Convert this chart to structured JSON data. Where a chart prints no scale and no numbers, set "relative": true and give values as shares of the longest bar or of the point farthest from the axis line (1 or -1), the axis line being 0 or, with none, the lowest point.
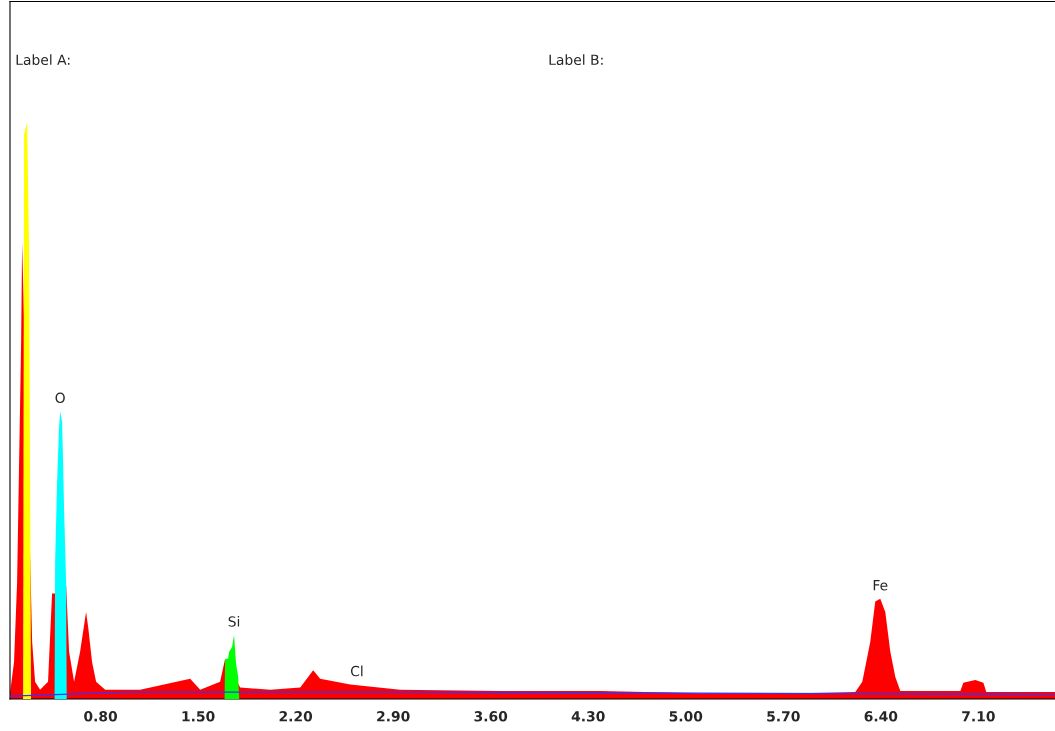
{
  "chart_data": {
    "type": "area",
    "relative": true,
    "xlim": [
      0.15,
      7.65
    ],
    "xticks": [
      {
        "value": 0.8,
        "label": "0.80"
      },
      {
        "value": 1.5,
        "label": "1.50"
      },
      {
        "value": 2.2,
        "label": "2.20"
      },
      {
        "value": 2.9,
        "label": "2.90"
      },
      {
        "value": 3.6,
        "label": "3.60"
      },
      {
        "value": 4.3,
        "label": "4.30"
      },
      {
        "value": 5.0,
        "label": "5.00"
      },
      {
        "value": 5.7,
        "label": "5.70"
      },
      {
        "value": 6.4,
        "label": "6.40"
      },
      {
        "value": 7.1,
        "label": "7.10"
      }
    ],
    "tick_labels": "x",
    "series": [
      {
        "color": "#ff0000",
        "x": [
          0.151,
          0.179,
          0.201,
          0.215,
          0.23,
          0.237,
          0.294,
          0.309,
          0.33,
          0.366,
          0.423,
          0.452,
          0.474,
          0.553,
          0.574,
          0.61,
          0.653,
          0.696,
          0.711,
          0.739,
          0.768,
          0.833,
          1.084,
          1.443,
          1.515,
          1.658,
          1.694,
          1.802,
          2.017,
          2.233,
          2.326,
          2.376,
          2.592,
          2.95,
          3.668,
          4.386,
          5.104,
          5.822,
          6.217,
          6.267,
          6.324,
          6.36,
          6.396,
          6.432,
          6.468,
          6.504,
          6.54,
          6.971,
          6.992,
          7.078,
          7.136,
          7.157,
          7.65
        ],
        "values": [
          0.012,
          0.064,
          0.203,
          0.405,
          0.621,
          0.791,
          0.252,
          0.099,
          0.03,
          0.016,
          0.03,
          0.183,
          0.183,
          0.197,
          0.082,
          0.03,
          0.082,
          0.151,
          0.125,
          0.064,
          0.03,
          0.016,
          0.016,
          0.035,
          0.016,
          0.03,
          0.07,
          0.02,
          0.016,
          0.02,
          0.05,
          0.035,
          0.025,
          0.016,
          0.014,
          0.014,
          0.01,
          0.01,
          0.012,
          0.03,
          0.099,
          0.169,
          0.174,
          0.151,
          0.082,
          0.038,
          0.014,
          0.014,
          0.028,
          0.033,
          0.028,
          0.012,
          0.012
        ]
      },
      {
        "color": "#ffff00",
        "x": [
          0.244,
          0.251,
          0.273,
          0.287,
          0.294,
          0.301
        ],
        "values": [
          0.0,
          0.98,
          1.0,
          0.777,
          0.395,
          0.0
        ]
      },
      {
        "color": "#00ffff",
        "x": [
          0.47,
          0.474,
          0.488,
          0.502,
          0.51,
          0.524,
          0.531,
          0.538,
          0.553,
          0.557
        ],
        "values": [
          0.0,
          0.238,
          0.377,
          0.47,
          0.499,
          0.48,
          0.41,
          0.33,
          0.2,
          0.0
        ]
      },
      {
        "color": "#00ff00",
        "x": [
          1.69,
          1.694,
          1.715,
          1.723,
          1.744,
          1.758,
          1.773,
          1.787,
          1.795
        ],
        "values": [
          0.0,
          0.07,
          0.07,
          0.082,
          0.09,
          0.111,
          0.06,
          0.04,
          0.0
        ]
      },
      {
        "type": "line",
        "color": "#3333ff",
        "x": [
          0.151,
          1.0,
          3.0,
          7.65
        ],
        "values": [
          0.005,
          0.012,
          0.012,
          0.008
        ]
      }
    ],
    "annotations": [
      "Label A:",
      "Label B:",
      {
        "text": "O",
        "x": 0.51,
        "y": 0.499
      },
      {
        "text": "Si",
        "x": 1.758,
        "y": 0.111
      },
      {
        "text": "Cl",
        "x": 2.64,
        "y": 0.025
      },
      {
        "text": "Fe",
        "x": 6.396,
        "y": 0.174
      }
    ]
  }
}
